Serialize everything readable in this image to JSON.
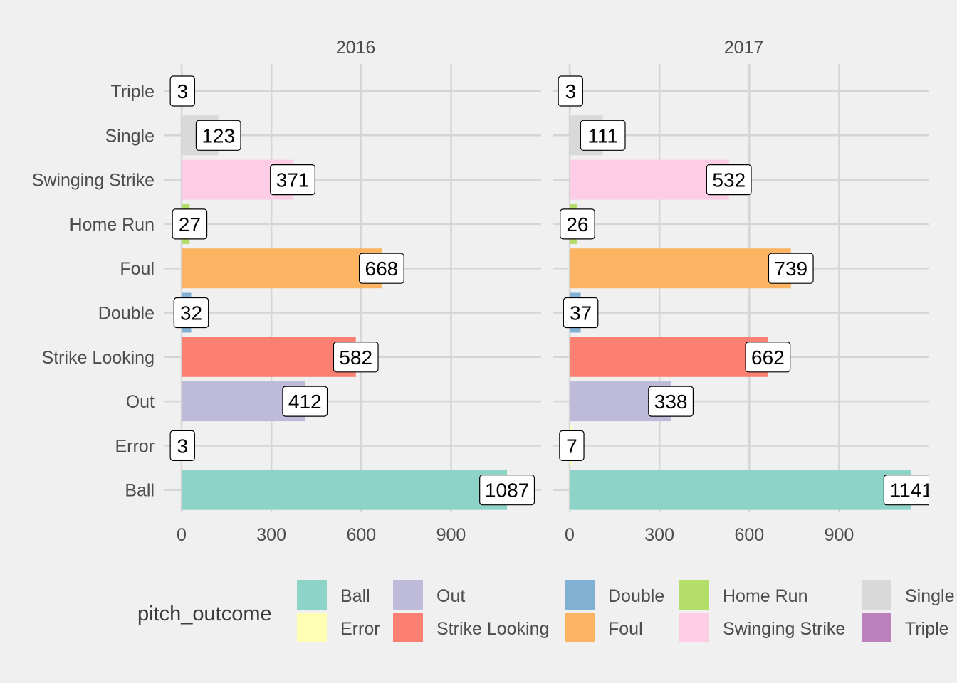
{
  "chart_data": {
    "type": "bar",
    "orientation": "horizontal",
    "facet_by": "year",
    "categories": [
      "Ball",
      "Error",
      "Out",
      "Strike Looking",
      "Double",
      "Foul",
      "Home Run",
      "Swinging Strike",
      "Single",
      "Triple"
    ],
    "facets": [
      {
        "title": "2016",
        "values": [
          1087,
          3,
          412,
          582,
          32,
          668,
          27,
          371,
          123,
          3
        ]
      },
      {
        "title": "2017",
        "values": [
          1141,
          7,
          338,
          662,
          37,
          739,
          26,
          532,
          111,
          3
        ]
      }
    ],
    "xticks": [
      "0",
      "300",
      "600",
      "900"
    ],
    "xlim": [
      0,
      1200
    ],
    "grid": true,
    "legend": {
      "title": "pitch_outcome",
      "position": "bottom",
      "columns": [
        [
          "Ball",
          "Error"
        ],
        [
          "Out",
          "Strike Looking"
        ],
        [
          "Double",
          "Foul"
        ],
        [
          "Home Run",
          "Swinging Strike"
        ],
        [
          "Single",
          "Triple"
        ]
      ]
    },
    "colors": {
      "Ball": "#8dd3c7",
      "Error": "#ffffb3",
      "Out": "#bebada",
      "Strike Looking": "#fb8072",
      "Double": "#80b1d3",
      "Foul": "#fdb462",
      "Home Run": "#b3de69",
      "Swinging Strike": "#fccde5",
      "Single": "#d9d9d9",
      "Triple": "#bc80bd"
    },
    "background": "#f0f0f0"
  }
}
